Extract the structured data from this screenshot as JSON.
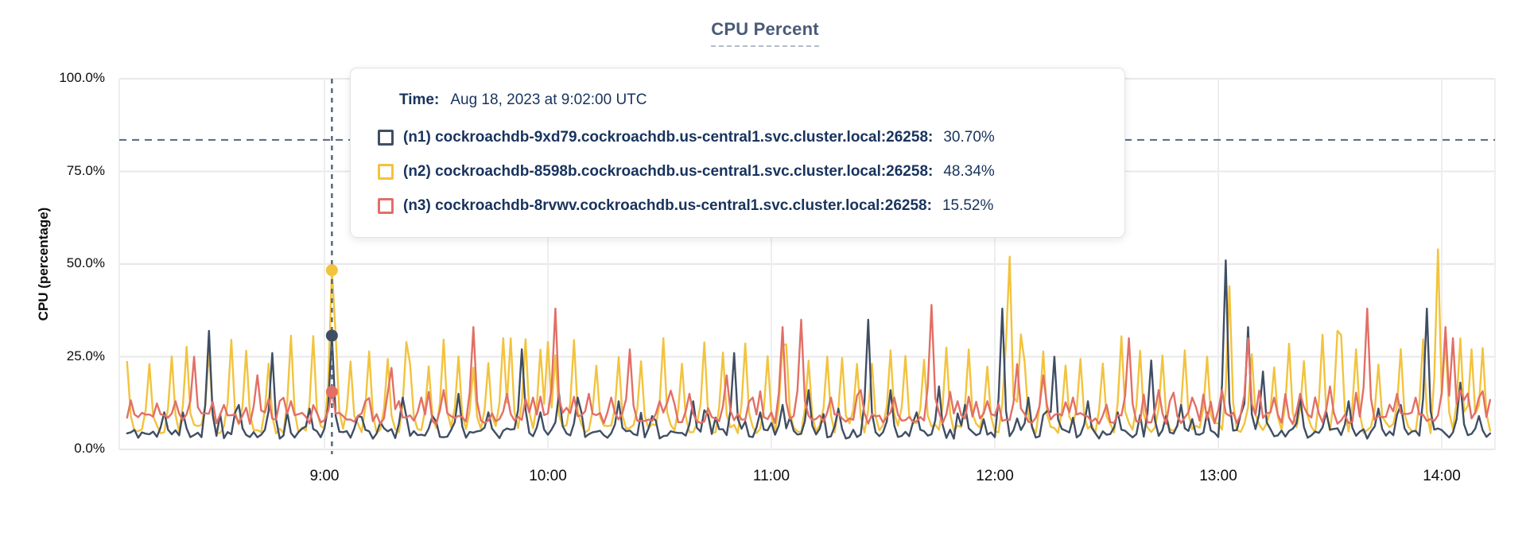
{
  "chart": {
    "title": "CPU Percent",
    "ylabel": "CPU (percentage)",
    "tooltip": {
      "time_label": "Time:",
      "time_value": "Aug 18, 2023 at 9:02:00 UTC",
      "series": [
        {
          "marker": "square-outline",
          "marker_color": "#404e64",
          "label": "(n1) cockroachdb-9xd79.cockroachdb.us-central1.svc.cluster.local:26258:",
          "value": "30.70%"
        },
        {
          "marker": "square-outline",
          "marker_color": "#f2c33d",
          "label": "(n2) cockroachdb-8598b.cockroachdb.us-central1.svc.cluster.local:26258:",
          "value": "48.34%"
        },
        {
          "marker": "square-outline",
          "marker_color": "#e26f66",
          "label": "(n3) cockroachdb-8rvwv.cockroachdb.us-central1.svc.cluster.local:26258:",
          "value": "15.52%"
        }
      ]
    }
  },
  "chart_data": {
    "type": "line",
    "title": "CPU Percent",
    "xlabel": "",
    "ylabel": "CPU (percentage)",
    "ylim": [
      0,
      100
    ],
    "grid": true,
    "y_ticks": [
      {
        "label": "100.0%",
        "value": 100
      },
      {
        "label": "75.0%",
        "value": 75
      },
      {
        "label": "50.0%",
        "value": 50
      },
      {
        "label": "25.0%",
        "value": 25
      },
      {
        "label": "0.0%",
        "value": 0
      }
    ],
    "x_ticks": [
      {
        "label": "9:00",
        "minutes": 540
      },
      {
        "label": "10:00",
        "minutes": 600
      },
      {
        "label": "11:00",
        "minutes": 660
      },
      {
        "label": "12:00",
        "minutes": 720
      },
      {
        "label": "13:00",
        "minutes": 780
      },
      {
        "label": "14:00",
        "minutes": 840
      }
    ],
    "x_range_minutes": [
      487,
      853
    ],
    "threshold_line": {
      "value_percent": 83.5,
      "style": "dashed",
      "color": "#54687d"
    },
    "hover_crosshair": {
      "time_label": "9:02",
      "minutes": 542,
      "color": "#54687d",
      "points": [
        {
          "series": "n1",
          "value_percent": 30.7
        },
        {
          "series": "n2",
          "value_percent": 48.34
        },
        {
          "series": "n3",
          "value_percent": 15.52
        }
      ]
    },
    "series": [
      {
        "id": "n1",
        "name": "(n1) cockroachdb-9xd79.cockroachdb.us-central1.svc.cluster.local:26258",
        "color": "#404e64",
        "seed": 11,
        "baseline": 4.3,
        "noise": 1.4,
        "bump": {
          "chance": 0.1,
          "min": 7,
          "max": 11
        },
        "peaks": [
          [
            497,
            10
          ],
          [
            509,
            32
          ],
          [
            517,
            12
          ],
          [
            526,
            26
          ],
          [
            536,
            11
          ],
          [
            542,
            30.7
          ],
          [
            549,
            9
          ],
          [
            561,
            14
          ],
          [
            569,
            9
          ],
          [
            576,
            15
          ],
          [
            584,
            10
          ],
          [
            593,
            27
          ],
          [
            598,
            10
          ],
          [
            603,
            15
          ],
          [
            608,
            14
          ],
          [
            619,
            13
          ],
          [
            628,
            9
          ],
          [
            639,
            13
          ],
          [
            650,
            26
          ],
          [
            657,
            10
          ],
          [
            663,
            12
          ],
          [
            670,
            16
          ],
          [
            678,
            11
          ],
          [
            686,
            35
          ],
          [
            692,
            16
          ],
          [
            699,
            10
          ],
          [
            705,
            17
          ],
          [
            712,
            12
          ],
          [
            722,
            38
          ],
          [
            729,
            14
          ],
          [
            736,
            25
          ],
          [
            745,
            13
          ],
          [
            753,
            10
          ],
          [
            762,
            24
          ],
          [
            770,
            12
          ],
          [
            782,
            51
          ],
          [
            788,
            33
          ],
          [
            792,
            21
          ],
          [
            802,
            14
          ],
          [
            809,
            10
          ],
          [
            815,
            13
          ],
          [
            823,
            11
          ],
          [
            829,
            12
          ],
          [
            836,
            38
          ],
          [
            845,
            18
          ],
          [
            850,
            9
          ]
        ]
      },
      {
        "id": "n2",
        "name": "(n2) cockroachdb-8598b.cockroachdb.us-central1.svc.cluster.local:26258",
        "color": "#f2c33d",
        "seed": 22,
        "baseline": 5.8,
        "noise": 1.5,
        "periodic": {
          "step": 4,
          "jitter": 2,
          "min": 22,
          "max": 31
        },
        "peaks": [
          [
            542,
            48.34
          ],
          [
            562,
            29
          ],
          [
            588,
            30
          ],
          [
            600,
            29
          ],
          [
            631,
            30
          ],
          [
            663,
            28
          ],
          [
            724,
            52
          ],
          [
            727,
            31
          ],
          [
            783,
            44
          ],
          [
            812,
            32
          ],
          [
            839,
            54
          ],
          [
            848,
            27
          ]
        ]
      },
      {
        "id": "n3",
        "name": "(n3) cockroachdb-8rvwv.cockroachdb.us-central1.svc.cluster.local:26258",
        "color": "#e26f66",
        "seed": 33,
        "baseline": 8.4,
        "noise": 1.6,
        "bump": {
          "chance": 0.13,
          "min": 11,
          "max": 16
        },
        "peaks": [
          [
            500,
            13
          ],
          [
            505,
            25
          ],
          [
            513,
            12
          ],
          [
            522,
            20
          ],
          [
            531,
            13
          ],
          [
            542,
            15.5
          ],
          [
            551,
            13
          ],
          [
            558,
            22
          ],
          [
            566,
            14
          ],
          [
            572,
            16
          ],
          [
            580,
            33
          ],
          [
            589,
            15
          ],
          [
            596,
            14
          ],
          [
            602,
            38
          ],
          [
            611,
            15
          ],
          [
            617,
            14
          ],
          [
            622,
            27
          ],
          [
            630,
            13
          ],
          [
            638,
            15
          ],
          [
            648,
            20
          ],
          [
            655,
            14
          ],
          [
            663,
            33
          ],
          [
            668,
            35
          ],
          [
            676,
            14
          ],
          [
            684,
            16
          ],
          [
            693,
            14
          ],
          [
            703,
            39
          ],
          [
            710,
            13
          ],
          [
            718,
            13
          ],
          [
            726,
            23
          ],
          [
            733,
            20
          ],
          [
            741,
            14
          ],
          [
            756,
            30
          ],
          [
            764,
            16
          ],
          [
            773,
            14
          ],
          [
            781,
            16
          ],
          [
            788,
            30
          ],
          [
            795,
            14
          ],
          [
            802,
            15
          ],
          [
            810,
            17
          ],
          [
            820,
            38
          ],
          [
            828,
            15
          ],
          [
            833,
            14
          ],
          [
            841,
            33
          ],
          [
            843,
            30
          ],
          [
            850,
            14
          ]
        ]
      }
    ],
    "legend_position": "tooltip-overlay",
    "colors": {
      "grid_horizontal": "#e8e8e8",
      "grid_vertical": "#eeeeee",
      "crosshair": "#54687d"
    }
  }
}
